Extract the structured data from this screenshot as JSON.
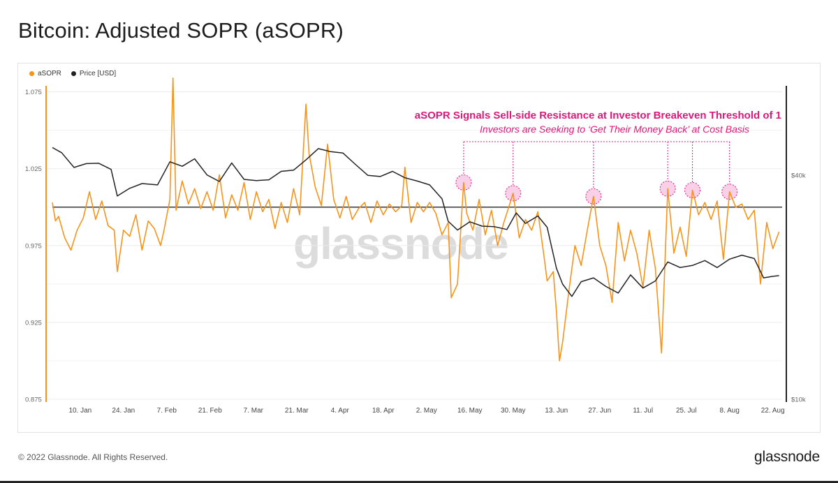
{
  "page": {
    "title": "Bitcoin: Adjusted SOPR (aSOPR)",
    "copyright": "© 2022 Glassnode. All Rights Reserved.",
    "brand": "glassnode",
    "watermark": "glassnode"
  },
  "legend": [
    {
      "label": "aSOPR",
      "color": "#f7931a"
    },
    {
      "label": "Price [USD]",
      "color": "#222222"
    }
  ],
  "annotation": {
    "title": "aSOPR Signals Sell-side Resistance at Investor Breakeven Threshold of 1",
    "subtitle": "Investors are Seeking to ‘Get Their Money Back’ at Cost Basis",
    "color": "#e0177a",
    "highlight_dates": [
      "2022-05-14",
      "2022-05-30",
      "2022-06-25",
      "2022-07-19",
      "2022-07-27",
      "2022-08-08"
    ]
  },
  "chart_data": {
    "type": "line",
    "title": "Bitcoin: Adjusted SOPR (aSOPR)",
    "x_ticks": [
      "10. Jan",
      "24. Jan",
      "7. Feb",
      "21. Feb",
      "7. Mar",
      "21. Mar",
      "4. Apr",
      "18. Apr",
      "2. May",
      "16. May",
      "30. May",
      "13. Jun",
      "27. Jun",
      "11. Jul",
      "25. Jul",
      "8. Aug",
      "22. Aug"
    ],
    "x_range": [
      "2022-01-01",
      "2022-08-25"
    ],
    "y_left": {
      "ticks": [
        "0.875",
        "0.925",
        "0.975",
        "1.025",
        "1.075"
      ],
      "range": [
        0.875,
        1.078
      ]
    },
    "y_right": {
      "ticks": [
        "$10k",
        "$40k"
      ],
      "scale": "log",
      "range": [
        10000,
        69000
      ]
    },
    "reference_line": {
      "axis": "left",
      "value": 1.0
    },
    "grid": "horizontal",
    "series": [
      {
        "name": "aSOPR",
        "axis": "left",
        "color": "#f7931a",
        "points": [
          [
            "2022-01-01",
            1.003
          ],
          [
            "2022-01-02",
            0.991
          ],
          [
            "2022-01-03",
            0.994
          ],
          [
            "2022-01-05",
            0.98
          ],
          [
            "2022-01-07",
            0.972
          ],
          [
            "2022-01-09",
            0.985
          ],
          [
            "2022-01-11",
            0.993
          ],
          [
            "2022-01-13",
            1.01
          ],
          [
            "2022-01-15",
            0.992
          ],
          [
            "2022-01-17",
            1.004
          ],
          [
            "2022-01-19",
            0.988
          ],
          [
            "2022-01-21",
            0.985
          ],
          [
            "2022-01-22",
            0.958
          ],
          [
            "2022-01-24",
            0.985
          ],
          [
            "2022-01-26",
            0.981
          ],
          [
            "2022-01-28",
            0.995
          ],
          [
            "2022-01-30",
            0.972
          ],
          [
            "2022-02-01",
            0.991
          ],
          [
            "2022-02-03",
            0.986
          ],
          [
            "2022-02-05",
            0.975
          ],
          [
            "2022-02-06",
            0.984
          ],
          [
            "2022-02-08",
            1.005
          ],
          [
            "2022-02-09",
            1.084
          ],
          [
            "2022-02-10",
            0.998
          ],
          [
            "2022-02-12",
            1.017
          ],
          [
            "2022-02-14",
            1.002
          ],
          [
            "2022-02-16",
            1.012
          ],
          [
            "2022-02-18",
            0.999
          ],
          [
            "2022-02-20",
            1.01
          ],
          [
            "2022-02-22",
            0.998
          ],
          [
            "2022-02-24",
            1.021
          ],
          [
            "2022-02-26",
            0.993
          ],
          [
            "2022-02-28",
            1.008
          ],
          [
            "2022-03-02",
            0.998
          ],
          [
            "2022-03-04",
            1.016
          ],
          [
            "2022-03-06",
            0.992
          ],
          [
            "2022-03-08",
            1.01
          ],
          [
            "2022-03-10",
            0.997
          ],
          [
            "2022-03-12",
            1.005
          ],
          [
            "2022-03-14",
            0.986
          ],
          [
            "2022-03-16",
            1.003
          ],
          [
            "2022-03-18",
            0.99
          ],
          [
            "2022-03-20",
            1.012
          ],
          [
            "2022-03-22",
            0.995
          ],
          [
            "2022-03-24",
            1.067
          ],
          [
            "2022-03-25",
            1.035
          ],
          [
            "2022-03-27",
            1.013
          ],
          [
            "2022-03-29",
            1.001
          ],
          [
            "2022-03-31",
            1.041
          ],
          [
            "2022-04-02",
            1.005
          ],
          [
            "2022-04-04",
            0.993
          ],
          [
            "2022-04-06",
            1.007
          ],
          [
            "2022-04-08",
            0.992
          ],
          [
            "2022-04-10",
            0.999
          ],
          [
            "2022-04-12",
            1.003
          ],
          [
            "2022-04-14",
            0.99
          ],
          [
            "2022-04-16",
            1.004
          ],
          [
            "2022-04-18",
            0.995
          ],
          [
            "2022-04-20",
            1.002
          ],
          [
            "2022-04-22",
            0.997
          ],
          [
            "2022-04-24",
            1.001
          ],
          [
            "2022-04-25",
            1.026
          ],
          [
            "2022-04-27",
            0.99
          ],
          [
            "2022-04-29",
            1.003
          ],
          [
            "2022-05-01",
            0.997
          ],
          [
            "2022-05-03",
            1.003
          ],
          [
            "2022-05-05",
            0.996
          ],
          [
            "2022-05-07",
            0.982
          ],
          [
            "2022-05-09",
            0.99
          ],
          [
            "2022-05-10",
            0.941
          ],
          [
            "2022-05-12",
            0.95
          ],
          [
            "2022-05-14",
            1.016
          ],
          [
            "2022-05-15",
            0.996
          ],
          [
            "2022-05-17",
            0.985
          ],
          [
            "2022-05-19",
            1.005
          ],
          [
            "2022-05-21",
            0.982
          ],
          [
            "2022-05-23",
            0.998
          ],
          [
            "2022-05-25",
            0.975
          ],
          [
            "2022-05-27",
            0.99
          ],
          [
            "2022-05-30",
            1.009
          ],
          [
            "2022-06-01",
            0.98
          ],
          [
            "2022-06-03",
            0.992
          ],
          [
            "2022-06-05",
            0.985
          ],
          [
            "2022-06-07",
            0.997
          ],
          [
            "2022-06-09",
            0.968
          ],
          [
            "2022-06-10",
            0.952
          ],
          [
            "2022-06-12",
            0.958
          ],
          [
            "2022-06-13",
            0.932
          ],
          [
            "2022-06-14",
            0.9
          ],
          [
            "2022-06-15",
            0.912
          ],
          [
            "2022-06-17",
            0.945
          ],
          [
            "2022-06-19",
            0.975
          ],
          [
            "2022-06-21",
            0.962
          ],
          [
            "2022-06-23",
            0.985
          ],
          [
            "2022-06-25",
            1.007
          ],
          [
            "2022-06-27",
            0.975
          ],
          [
            "2022-06-29",
            0.962
          ],
          [
            "2022-07-01",
            0.938
          ],
          [
            "2022-07-03",
            0.99
          ],
          [
            "2022-07-05",
            0.965
          ],
          [
            "2022-07-07",
            0.985
          ],
          [
            "2022-07-09",
            0.97
          ],
          [
            "2022-07-11",
            0.948
          ],
          [
            "2022-07-13",
            0.985
          ],
          [
            "2022-07-15",
            0.96
          ],
          [
            "2022-07-17",
            0.905
          ],
          [
            "2022-07-19",
            1.012
          ],
          [
            "2022-07-21",
            0.97
          ],
          [
            "2022-07-23",
            0.987
          ],
          [
            "2022-07-25",
            0.968
          ],
          [
            "2022-07-27",
            1.011
          ],
          [
            "2022-07-29",
            0.995
          ],
          [
            "2022-07-31",
            1.003
          ],
          [
            "2022-08-02",
            0.992
          ],
          [
            "2022-08-04",
            1.004
          ],
          [
            "2022-08-06",
            0.966
          ],
          [
            "2022-08-08",
            1.01
          ],
          [
            "2022-08-10",
            1.0
          ],
          [
            "2022-08-12",
            1.002
          ],
          [
            "2022-08-14",
            0.992
          ],
          [
            "2022-08-16",
            0.998
          ],
          [
            "2022-08-18",
            0.95
          ],
          [
            "2022-08-20",
            0.99
          ],
          [
            "2022-08-22",
            0.973
          ],
          [
            "2022-08-24",
            0.984
          ]
        ]
      },
      {
        "name": "Price [USD]",
        "axis": "right",
        "color": "#222222",
        "points": [
          [
            "2022-01-01",
            47500
          ],
          [
            "2022-01-04",
            46000
          ],
          [
            "2022-01-08",
            42000
          ],
          [
            "2022-01-12",
            43000
          ],
          [
            "2022-01-16",
            43100
          ],
          [
            "2022-01-20",
            41500
          ],
          [
            "2022-01-22",
            35200
          ],
          [
            "2022-01-26",
            36900
          ],
          [
            "2022-01-30",
            38000
          ],
          [
            "2022-02-04",
            37700
          ],
          [
            "2022-02-08",
            43500
          ],
          [
            "2022-02-12",
            42300
          ],
          [
            "2022-02-16",
            44300
          ],
          [
            "2022-02-20",
            40100
          ],
          [
            "2022-02-24",
            38500
          ],
          [
            "2022-02-28",
            43200
          ],
          [
            "2022-03-04",
            39000
          ],
          [
            "2022-03-08",
            38700
          ],
          [
            "2022-03-12",
            38900
          ],
          [
            "2022-03-16",
            41000
          ],
          [
            "2022-03-20",
            41300
          ],
          [
            "2022-03-24",
            44000
          ],
          [
            "2022-03-28",
            47200
          ],
          [
            "2022-04-01",
            46300
          ],
          [
            "2022-04-05",
            45900
          ],
          [
            "2022-04-09",
            42800
          ],
          [
            "2022-04-13",
            40000
          ],
          [
            "2022-04-17",
            39700
          ],
          [
            "2022-04-21",
            41000
          ],
          [
            "2022-04-25",
            39400
          ],
          [
            "2022-04-29",
            38600
          ],
          [
            "2022-05-03",
            37700
          ],
          [
            "2022-05-07",
            34600
          ],
          [
            "2022-05-09",
            30100
          ],
          [
            "2022-05-12",
            28500
          ],
          [
            "2022-05-16",
            30000
          ],
          [
            "2022-05-20",
            29200
          ],
          [
            "2022-05-24",
            29100
          ],
          [
            "2022-05-28",
            28600
          ],
          [
            "2022-05-31",
            31700
          ],
          [
            "2022-06-03",
            29700
          ],
          [
            "2022-06-07",
            31100
          ],
          [
            "2022-06-10",
            29000
          ],
          [
            "2022-06-13",
            22500
          ],
          [
            "2022-06-15",
            20400
          ],
          [
            "2022-06-18",
            18900
          ],
          [
            "2022-06-21",
            20700
          ],
          [
            "2022-06-25",
            21200
          ],
          [
            "2022-06-29",
            20100
          ],
          [
            "2022-07-03",
            19300
          ],
          [
            "2022-07-07",
            21600
          ],
          [
            "2022-07-11",
            19900
          ],
          [
            "2022-07-15",
            20800
          ],
          [
            "2022-07-19",
            23400
          ],
          [
            "2022-07-23",
            22600
          ],
          [
            "2022-07-27",
            22900
          ],
          [
            "2022-07-31",
            23600
          ],
          [
            "2022-08-04",
            22600
          ],
          [
            "2022-08-08",
            23800
          ],
          [
            "2022-08-12",
            24400
          ],
          [
            "2022-08-16",
            23900
          ],
          [
            "2022-08-19",
            21200
          ],
          [
            "2022-08-22",
            21400
          ],
          [
            "2022-08-24",
            21500
          ]
        ]
      }
    ]
  }
}
